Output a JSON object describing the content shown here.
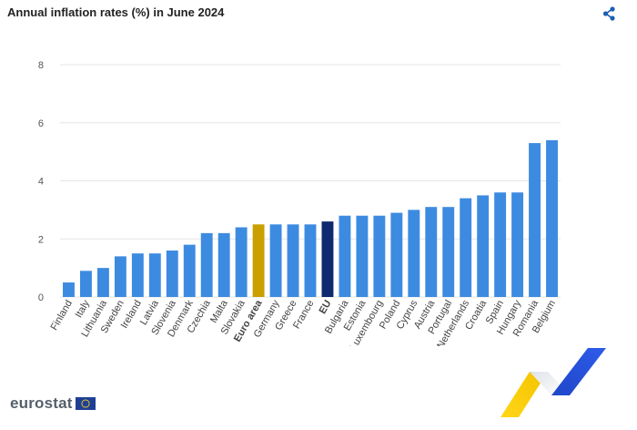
{
  "header": {
    "title": "Annual inflation rates (%) in June 2024",
    "share_icon": "share-icon"
  },
  "brand": {
    "name": "eurostat",
    "flag_icon": "eu-flag-icon"
  },
  "colors": {
    "default_bar": "#3d8be0",
    "euro_area_bar": "#c9a000",
    "eu_bar": "#0f2a6e",
    "grid": "#e6e6e6",
    "tick_text": "#555555",
    "share_icon": "#1a5fb4"
  },
  "chart_data": {
    "type": "bar",
    "title": "Annual inflation rates (%) in June 2024",
    "xlabel": "",
    "ylabel": "",
    "ylim": [
      0,
      8
    ],
    "yticks": [
      0,
      2,
      4,
      6,
      8
    ],
    "grid": true,
    "legend": "none",
    "categories": [
      "Finland",
      "Italy",
      "Lithuania",
      "Sweden",
      "Ireland",
      "Latvia",
      "Slovenia",
      "Denmark",
      "Czechia",
      "Malta",
      "Slovakia",
      "Euro area",
      "Germany",
      "Greece",
      "France",
      "EU",
      "Bulgaria",
      "Estonia",
      "Luxembourg",
      "Poland",
      "Cyprus",
      "Austria",
      "Portugal",
      "Netherlands",
      "Croatia",
      "Spain",
      "Hungary",
      "Romania",
      "Belgium"
    ],
    "values": [
      0.5,
      0.9,
      1.0,
      1.4,
      1.5,
      1.5,
      1.6,
      1.8,
      2.2,
      2.2,
      2.4,
      2.5,
      2.5,
      2.5,
      2.5,
      2.6,
      2.8,
      2.8,
      2.8,
      2.9,
      3.0,
      3.1,
      3.1,
      3.4,
      3.5,
      3.6,
      3.6,
      5.3,
      5.4
    ],
    "highlights": {
      "Euro area": "euro_area_bar",
      "EU": "eu_bar"
    },
    "bold_labels": [
      "Euro area",
      "EU"
    ]
  }
}
